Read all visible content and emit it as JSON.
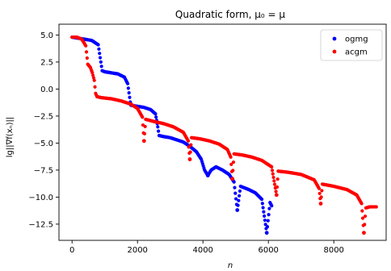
{
  "chart_data": {
    "type": "scatter",
    "title": "Quadratic form, μ₀ = μ",
    "xlabel": "n",
    "ylabel": "lg||∇f(xₙ)||",
    "xlim": [
      -400,
      9600
    ],
    "ylim": [
      -14.0,
      6.0
    ],
    "x_ticks": [
      0,
      2000,
      4000,
      6000,
      8000
    ],
    "x_tick_labels": [
      "0",
      "2000",
      "4000",
      "6000",
      "8000"
    ],
    "y_ticks": [
      5.0,
      2.5,
      0.0,
      -2.5,
      -5.0,
      -7.5,
      -10.0,
      -12.5
    ],
    "y_tick_labels": [
      "5.0",
      "2.5",
      "0.0",
      "−2.5",
      "−5.0",
      "−7.5",
      "−10.0",
      "−12.5"
    ],
    "grid": false,
    "legend_position": "top-right",
    "series": [
      {
        "name": "ogmg",
        "color": "#0000ff",
        "points": [
          [
            0,
            4.8
          ],
          [
            200,
            4.7
          ],
          [
            400,
            4.6
          ],
          [
            600,
            4.5
          ],
          [
            800,
            4.1
          ],
          [
            880,
            2.5
          ],
          [
            920,
            1.7
          ],
          [
            1000,
            1.6
          ],
          [
            1200,
            1.5
          ],
          [
            1400,
            1.4
          ],
          [
            1600,
            1.1
          ],
          [
            1700,
            0.5
          ],
          [
            1780,
            -1.2
          ],
          [
            1800,
            -1.5
          ],
          [
            2000,
            -1.6
          ],
          [
            2200,
            -1.7
          ],
          [
            2400,
            -1.9
          ],
          [
            2550,
            -2.3
          ],
          [
            2620,
            -3.5
          ],
          [
            2660,
            -4.3
          ],
          [
            2800,
            -4.4
          ],
          [
            3000,
            -4.5
          ],
          [
            3200,
            -4.7
          ],
          [
            3400,
            -4.9
          ],
          [
            3600,
            -5.3
          ],
          [
            3800,
            -5.8
          ],
          [
            3950,
            -6.5
          ],
          [
            4050,
            -7.5
          ],
          [
            4150,
            -8.0
          ],
          [
            4250,
            -7.5
          ],
          [
            4400,
            -7.2
          ],
          [
            4600,
            -7.5
          ],
          [
            4800,
            -7.9
          ],
          [
            4950,
            -8.6
          ],
          [
            5050,
            -11.2
          ],
          [
            5150,
            -9.0
          ],
          [
            5400,
            -9.3
          ],
          [
            5600,
            -9.6
          ],
          [
            5800,
            -10.2
          ],
          [
            5950,
            -13.3
          ],
          [
            6050,
            -10.5
          ],
          [
            6100,
            -10.8
          ]
        ]
      },
      {
        "name": "acgm",
        "color": "#ff0000",
        "points": [
          [
            0,
            4.8
          ],
          [
            150,
            4.8
          ],
          [
            300,
            4.6
          ],
          [
            420,
            4.0
          ],
          [
            480,
            2.3
          ],
          [
            560,
            2.0
          ],
          [
            620,
            1.5
          ],
          [
            680,
            0.8
          ],
          [
            720,
            -0.4
          ],
          [
            760,
            -0.7
          ],
          [
            900,
            -0.8
          ],
          [
            1200,
            -0.9
          ],
          [
            1500,
            -1.1
          ],
          [
            1800,
            -1.4
          ],
          [
            2000,
            -1.8
          ],
          [
            2150,
            -2.6
          ],
          [
            2200,
            -4.8
          ],
          [
            2250,
            -2.8
          ],
          [
            2500,
            -3.0
          ],
          [
            2800,
            -3.2
          ],
          [
            3100,
            -3.5
          ],
          [
            3400,
            -4.0
          ],
          [
            3550,
            -4.8
          ],
          [
            3600,
            -6.5
          ],
          [
            3650,
            -4.5
          ],
          [
            3900,
            -4.6
          ],
          [
            4200,
            -4.8
          ],
          [
            4500,
            -5.1
          ],
          [
            4750,
            -5.6
          ],
          [
            4850,
            -6.3
          ],
          [
            4900,
            -8.3
          ],
          [
            4950,
            -6.0
          ],
          [
            5200,
            -6.1
          ],
          [
            5500,
            -6.3
          ],
          [
            5800,
            -6.6
          ],
          [
            6100,
            -7.2
          ],
          [
            6250,
            -9.8
          ],
          [
            6300,
            -7.6
          ],
          [
            6600,
            -7.7
          ],
          [
            7000,
            -7.9
          ],
          [
            7400,
            -8.4
          ],
          [
            7550,
            -9.2
          ],
          [
            7600,
            -10.6
          ],
          [
            7650,
            -8.8
          ],
          [
            8000,
            -9.0
          ],
          [
            8400,
            -9.3
          ],
          [
            8700,
            -9.8
          ],
          [
            8850,
            -10.6
          ],
          [
            8920,
            -13.3
          ],
          [
            8980,
            -11.0
          ],
          [
            9100,
            -10.9
          ],
          [
            9300,
            -10.9
          ]
        ]
      }
    ]
  }
}
